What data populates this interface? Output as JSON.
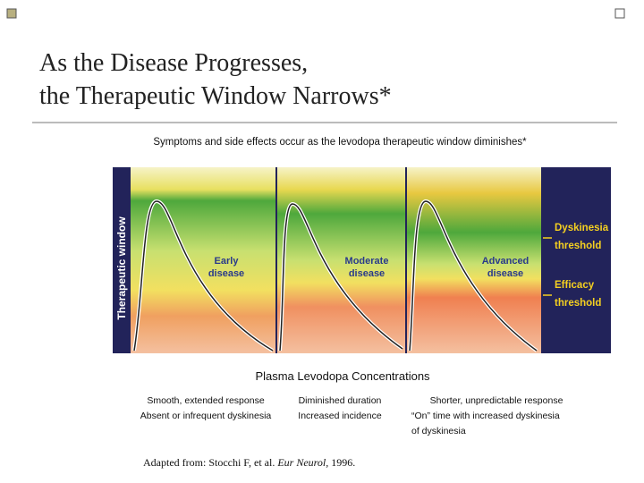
{
  "title": {
    "lines": [
      "As the Disease Progresses,",
      "the Therapeutic Window Narrows*"
    ]
  },
  "subtitle": "Symptoms and side effects occur as the levodopa therapeutic window diminishes*",
  "diagram": {
    "y_axis_label": "Therapeutic window",
    "panels": [
      {
        "lines": [
          "Early",
          "disease"
        ]
      },
      {
        "lines": [
          "Moderate",
          "disease"
        ]
      },
      {
        "lines": [
          "Advanced",
          "disease"
        ]
      }
    ],
    "thresholds": [
      {
        "lines": [
          "Dyskinesia",
          "threshold"
        ]
      },
      {
        "lines": [
          "Efficacy",
          "threshold"
        ]
      }
    ],
    "x_axis_label": "Plasma Levodopa Concentrations"
  },
  "columns": [
    {
      "lines": [
        "Smooth, extended response",
        "Absent or infrequent dyskinesia"
      ]
    },
    {
      "lines": [
        "Diminished duration",
        "Increased incidence"
      ]
    },
    {
      "lines": [
        "Shorter, unpredictable response",
        "“On” time with increased dyskinesia",
        "of dyskinesia"
      ]
    }
  ],
  "citation": {
    "before": "Adapted from: Stocchi F, et al. ",
    "journal": "Eur Neurol,",
    "after": " 1996."
  }
}
